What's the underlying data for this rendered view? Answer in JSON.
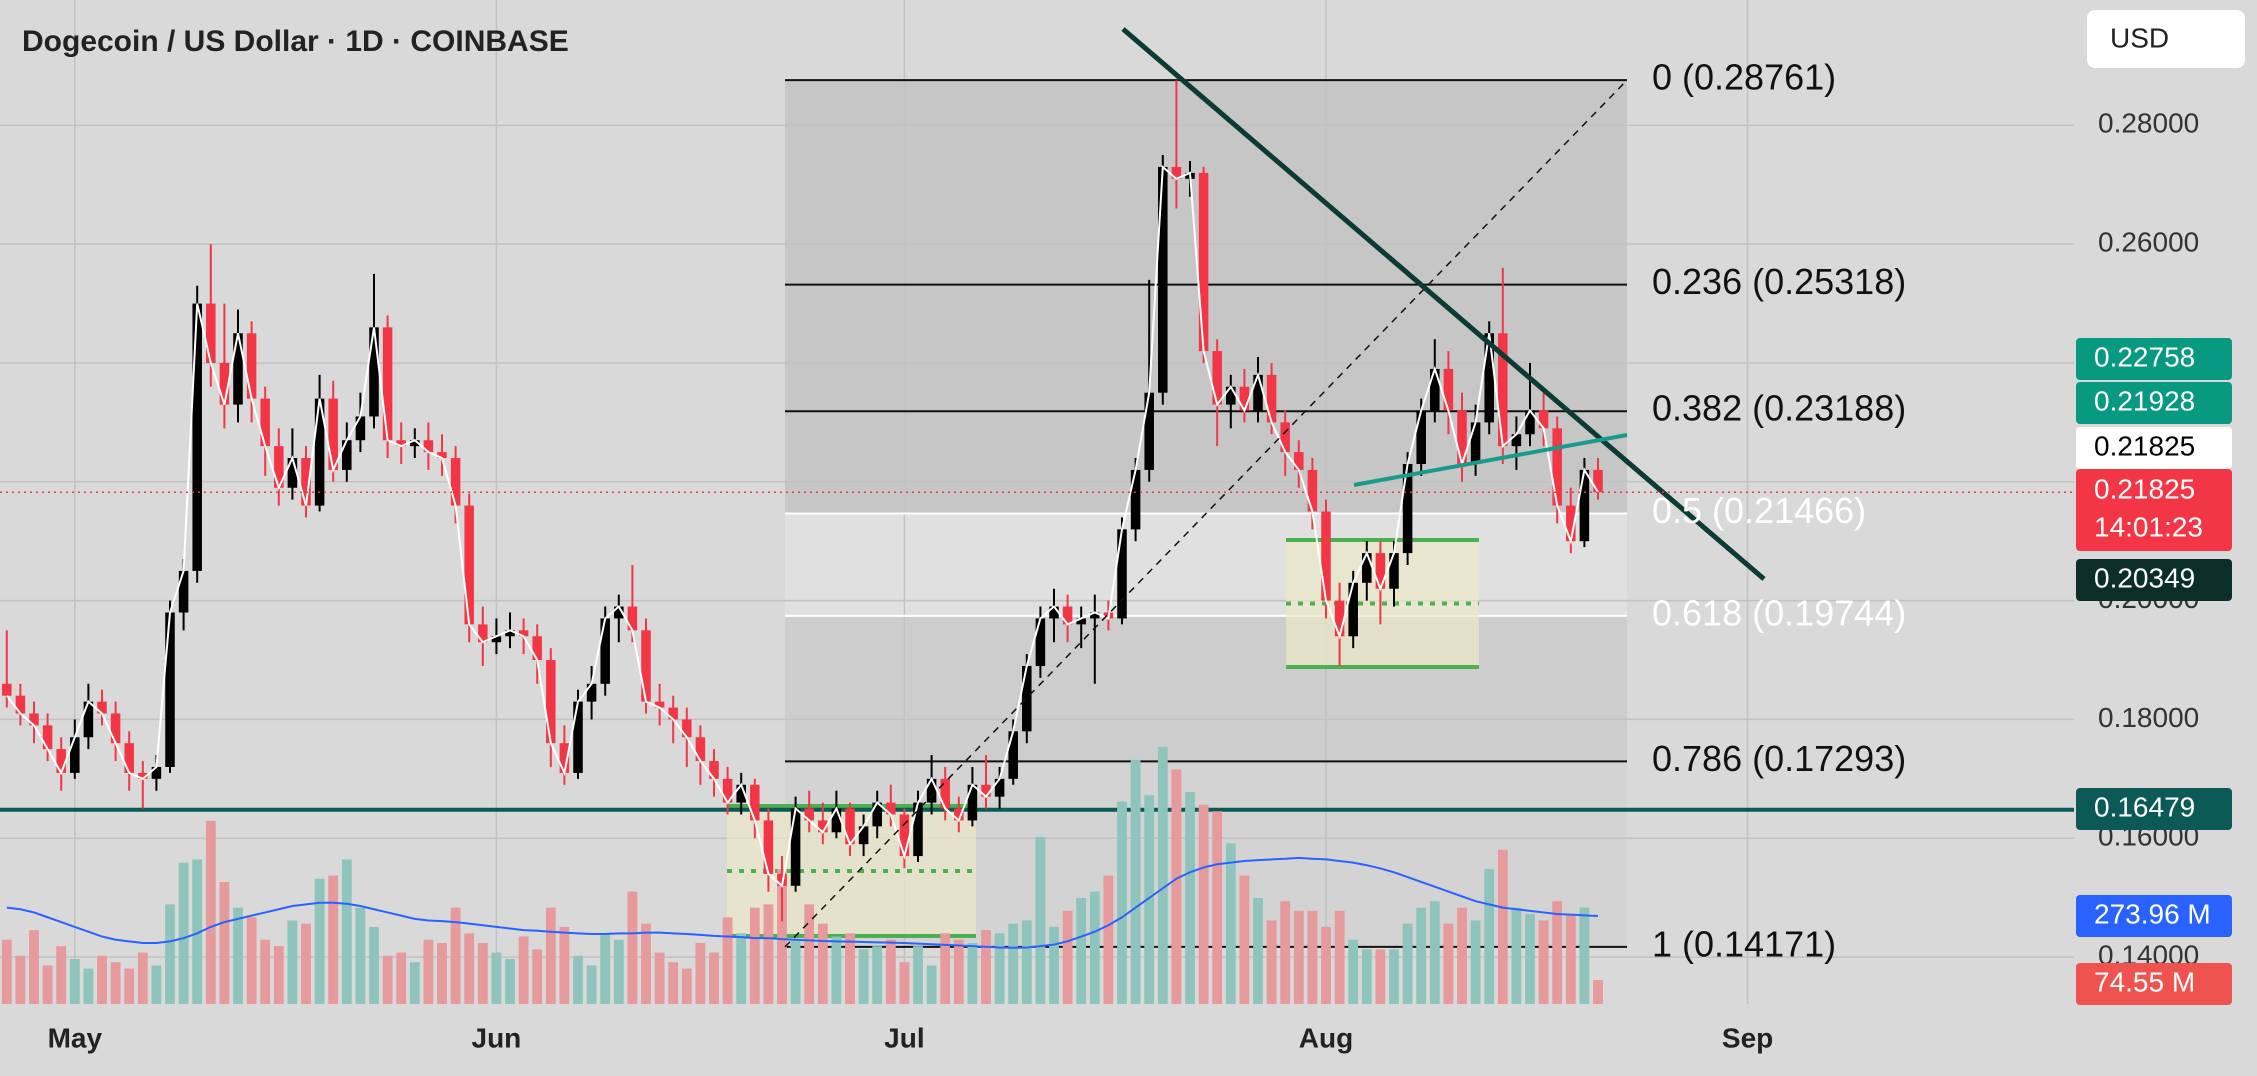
{
  "chart_data": {
    "type": "candlestick",
    "title": "Dogecoin / US Dollar · 1D · COINBASE",
    "currency": "USD",
    "up_color": "#000000",
    "down_color": "#f23645",
    "close_line_color": "#ffffff",
    "candles": [
      [
        0.186,
        0.195,
        0.182,
        0.184
      ],
      [
        0.184,
        0.186,
        0.179,
        0.181
      ],
      [
        0.181,
        0.183,
        0.176,
        0.179
      ],
      [
        0.179,
        0.181,
        0.173,
        0.175
      ],
      [
        0.175,
        0.177,
        0.168,
        0.171
      ],
      [
        0.171,
        0.18,
        0.17,
        0.177
      ],
      [
        0.177,
        0.186,
        0.175,
        0.183
      ],
      [
        0.183,
        0.185,
        0.179,
        0.181
      ],
      [
        0.181,
        0.183,
        0.173,
        0.176
      ],
      [
        0.176,
        0.178,
        0.168,
        0.171
      ],
      [
        0.171,
        0.173,
        0.165,
        0.17
      ],
      [
        0.17,
        0.174,
        0.168,
        0.172
      ],
      [
        0.172,
        0.2,
        0.171,
        0.198
      ],
      [
        0.198,
        0.207,
        0.195,
        0.205
      ],
      [
        0.205,
        0.253,
        0.203,
        0.25
      ],
      [
        0.25,
        0.26,
        0.236,
        0.24
      ],
      [
        0.24,
        0.25,
        0.229,
        0.233
      ],
      [
        0.233,
        0.249,
        0.23,
        0.245
      ],
      [
        0.245,
        0.247,
        0.23,
        0.234
      ],
      [
        0.234,
        0.236,
        0.221,
        0.226
      ],
      [
        0.226,
        0.229,
        0.216,
        0.219
      ],
      [
        0.219,
        0.229,
        0.217,
        0.224
      ],
      [
        0.224,
        0.226,
        0.214,
        0.216
      ],
      [
        0.216,
        0.238,
        0.215,
        0.234
      ],
      [
        0.234,
        0.237,
        0.22,
        0.222
      ],
      [
        0.222,
        0.23,
        0.22,
        0.227
      ],
      [
        0.227,
        0.235,
        0.225,
        0.231
      ],
      [
        0.231,
        0.255,
        0.229,
        0.246
      ],
      [
        0.246,
        0.248,
        0.224,
        0.227
      ],
      [
        0.227,
        0.23,
        0.223,
        0.226
      ],
      [
        0.226,
        0.229,
        0.224,
        0.227
      ],
      [
        0.227,
        0.23,
        0.222,
        0.225
      ],
      [
        0.225,
        0.228,
        0.221,
        0.224
      ],
      [
        0.224,
        0.226,
        0.213,
        0.216
      ],
      [
        0.216,
        0.218,
        0.193,
        0.196
      ],
      [
        0.196,
        0.199,
        0.189,
        0.193
      ],
      [
        0.193,
        0.197,
        0.191,
        0.194
      ],
      [
        0.194,
        0.198,
        0.192,
        0.195
      ],
      [
        0.195,
        0.197,
        0.191,
        0.194
      ],
      [
        0.194,
        0.196,
        0.186,
        0.19
      ],
      [
        0.19,
        0.192,
        0.172,
        0.176
      ],
      [
        0.176,
        0.179,
        0.169,
        0.171
      ],
      [
        0.171,
        0.185,
        0.17,
        0.183
      ],
      [
        0.183,
        0.189,
        0.18,
        0.186
      ],
      [
        0.186,
        0.199,
        0.184,
        0.197
      ],
      [
        0.197,
        0.201,
        0.193,
        0.199
      ],
      [
        0.199,
        0.206,
        0.193,
        0.195
      ],
      [
        0.195,
        0.197,
        0.181,
        0.183
      ],
      [
        0.183,
        0.186,
        0.179,
        0.182
      ],
      [
        0.182,
        0.184,
        0.176,
        0.18
      ],
      [
        0.18,
        0.182,
        0.172,
        0.177
      ],
      [
        0.177,
        0.179,
        0.169,
        0.173
      ],
      [
        0.173,
        0.175,
        0.167,
        0.17
      ],
      [
        0.17,
        0.172,
        0.164,
        0.166
      ],
      [
        0.166,
        0.171,
        0.164,
        0.169
      ],
      [
        0.169,
        0.17,
        0.16,
        0.163
      ],
      [
        0.163,
        0.165,
        0.151,
        0.154
      ],
      [
        0.154,
        0.157,
        0.146,
        0.152
      ],
      [
        0.152,
        0.167,
        0.151,
        0.165
      ],
      [
        0.165,
        0.168,
        0.161,
        0.163
      ],
      [
        0.163,
        0.166,
        0.159,
        0.161
      ],
      [
        0.161,
        0.168,
        0.16,
        0.165
      ],
      [
        0.165,
        0.166,
        0.157,
        0.159
      ],
      [
        0.159,
        0.164,
        0.157,
        0.162
      ],
      [
        0.162,
        0.168,
        0.16,
        0.166
      ],
      [
        0.166,
        0.169,
        0.162,
        0.164
      ],
      [
        0.164,
        0.165,
        0.155,
        0.157
      ],
      [
        0.157,
        0.168,
        0.156,
        0.166
      ],
      [
        0.166,
        0.174,
        0.164,
        0.17
      ],
      [
        0.17,
        0.172,
        0.163,
        0.165
      ],
      [
        0.165,
        0.167,
        0.161,
        0.163
      ],
      [
        0.163,
        0.172,
        0.162,
        0.169
      ],
      [
        0.169,
        0.174,
        0.165,
        0.167
      ],
      [
        0.167,
        0.172,
        0.165,
        0.17
      ],
      [
        0.17,
        0.18,
        0.169,
        0.178
      ],
      [
        0.178,
        0.191,
        0.176,
        0.189
      ],
      [
        0.189,
        0.199,
        0.187,
        0.197
      ],
      [
        0.197,
        0.202,
        0.193,
        0.199
      ],
      [
        0.199,
        0.201,
        0.193,
        0.196
      ],
      [
        0.196,
        0.199,
        0.192,
        0.197
      ],
      [
        0.197,
        0.201,
        0.186,
        0.198
      ],
      [
        0.198,
        0.2,
        0.195,
        0.197
      ],
      [
        0.197,
        0.214,
        0.196,
        0.212
      ],
      [
        0.212,
        0.224,
        0.21,
        0.222
      ],
      [
        0.222,
        0.254,
        0.22,
        0.235
      ],
      [
        0.235,
        0.275,
        0.233,
        0.273
      ],
      [
        0.273,
        0.2876,
        0.266,
        0.271
      ],
      [
        0.271,
        0.274,
        0.268,
        0.272
      ],
      [
        0.272,
        0.273,
        0.24,
        0.242
      ],
      [
        0.242,
        0.244,
        0.226,
        0.233
      ],
      [
        0.233,
        0.238,
        0.229,
        0.236
      ],
      [
        0.236,
        0.239,
        0.23,
        0.232
      ],
      [
        0.232,
        0.241,
        0.23,
        0.238
      ],
      [
        0.238,
        0.24,
        0.228,
        0.23
      ],
      [
        0.23,
        0.232,
        0.221,
        0.225
      ],
      [
        0.225,
        0.227,
        0.219,
        0.222
      ],
      [
        0.222,
        0.224,
        0.212,
        0.215
      ],
      [
        0.215,
        0.217,
        0.197,
        0.2
      ],
      [
        0.2,
        0.203,
        0.189,
        0.194
      ],
      [
        0.194,
        0.205,
        0.192,
        0.203
      ],
      [
        0.203,
        0.21,
        0.2,
        0.208
      ],
      [
        0.208,
        0.21,
        0.196,
        0.202
      ],
      [
        0.202,
        0.21,
        0.199,
        0.208
      ],
      [
        0.208,
        0.225,
        0.206,
        0.223
      ],
      [
        0.223,
        0.234,
        0.221,
        0.232
      ],
      [
        0.232,
        0.244,
        0.23,
        0.239
      ],
      [
        0.239,
        0.242,
        0.228,
        0.232
      ],
      [
        0.232,
        0.235,
        0.22,
        0.223
      ],
      [
        0.223,
        0.233,
        0.221,
        0.23
      ],
      [
        0.23,
        0.247,
        0.228,
        0.245
      ],
      [
        0.245,
        0.256,
        0.223,
        0.226
      ],
      [
        0.226,
        0.231,
        0.222,
        0.228
      ],
      [
        0.228,
        0.24,
        0.226,
        0.232
      ],
      [
        0.232,
        0.235,
        0.226,
        0.229
      ],
      [
        0.229,
        0.231,
        0.213,
        0.216
      ],
      [
        0.216,
        0.219,
        0.208,
        0.21
      ],
      [
        0.21,
        0.224,
        0.209,
        0.222
      ],
      [
        0.222,
        0.224,
        0.217,
        0.21825
      ]
    ],
    "volume": {
      "up_color": "#8ec4bc",
      "down_color": "#e69a9b",
      "ylim": [
        0,
        3125
      ],
      "values": [
        200,
        150,
        230,
        120,
        180,
        140,
        110,
        150,
        130,
        110,
        160,
        120,
        310,
        440,
        450,
        570,
        380,
        300,
        270,
        200,
        180,
        260,
        250,
        390,
        400,
        450,
        300,
        240,
        150,
        160,
        130,
        200,
        190,
        300,
        220,
        190,
        160,
        140,
        210,
        170,
        300,
        240,
        150,
        120,
        220,
        200,
        350,
        250,
        160,
        130,
        110,
        190,
        160,
        270,
        220,
        300,
        310,
        420,
        200,
        310,
        250,
        210,
        220,
        170,
        180,
        200,
        130,
        180,
        120,
        220,
        200,
        190,
        230,
        220,
        250,
        260,
        520,
        240,
        290,
        330,
        350,
        400,
        630,
        760,
        650,
        800,
        730,
        660,
        620,
        600,
        500,
        400,
        330,
        260,
        320,
        290,
        290,
        240,
        290,
        200,
        170,
        170,
        170,
        250,
        300,
        320,
        250,
        300,
        260,
        420,
        480,
        300,
        280,
        260,
        320,
        280,
        300,
        74.55
      ],
      "ma": {
        "color": "#2962ff",
        "values": [
          300,
          295,
          285,
          270,
          255,
          240,
          225,
          210,
          200,
          195,
          190,
          190,
          195,
          205,
          220,
          240,
          255,
          265,
          275,
          285,
          295,
          305,
          310,
          315,
          315,
          312,
          305,
          295,
          285,
          275,
          265,
          260,
          258,
          255,
          250,
          245,
          240,
          235,
          230,
          228,
          225,
          222,
          220,
          218,
          218,
          220,
          220,
          222,
          222,
          220,
          218,
          215,
          212,
          210,
          208,
          205,
          205,
          202,
          200,
          198,
          196,
          195,
          194,
          193,
          192,
          191,
          190,
          188,
          186,
          184,
          182,
          180,
          178,
          176,
          175,
          176,
          180,
          185,
          195,
          210,
          225,
          245,
          270,
          300,
          330,
          360,
          390,
          410,
          425,
          435,
          440,
          445,
          448,
          450,
          452,
          455,
          452,
          450,
          445,
          440,
          432,
          422,
          410,
          395,
          380,
          365,
          350,
          335,
          320,
          310,
          300,
          295,
          290,
          285,
          280,
          278,
          276,
          273.96
        ]
      }
    },
    "xlim": [
      -0.5,
      152
    ],
    "xticks": [
      {
        "value": 5,
        "label": "May"
      },
      {
        "value": 36,
        "label": "Jun"
      },
      {
        "value": 66,
        "label": "Jul"
      },
      {
        "value": 97,
        "label": "Aug"
      },
      {
        "value": 128,
        "label": "Sep"
      }
    ],
    "ylim": [
      0.1321,
      0.3011
    ],
    "yticks": [
      {
        "value": 0.14,
        "label": "0.14000"
      },
      {
        "value": 0.16,
        "label": "0.16000"
      },
      {
        "value": 0.18,
        "label": "0.18000"
      },
      {
        "value": 0.2,
        "label": "0.20000"
      },
      {
        "value": 0.22,
        "label": "0.22000"
      },
      {
        "value": 0.24,
        "label": "0.24000"
      },
      {
        "value": 0.26,
        "label": "0.26000"
      },
      {
        "value": 0.28,
        "label": "0.28000"
      }
    ],
    "grid": true,
    "fib_levels": [
      {
        "value": 0.28761,
        "label": "0 (0.28761)",
        "color": "#111111",
        "band_color": "#c6c6c6"
      },
      {
        "value": 0.25318,
        "label": "0.236 (0.25318)",
        "color": "#111111",
        "band_color": "#c6c6c6"
      },
      {
        "value": 0.23188,
        "label": "0.382 (0.23188)",
        "color": "#111111",
        "band_color": "#c6c6c6"
      },
      {
        "value": 0.21466,
        "label": "0.5 (0.21466)",
        "color": "#ffffff",
        "band_color": "#e0e0e0"
      },
      {
        "value": 0.19744,
        "label": "0.618 (0.19744)",
        "color": "#ffffff",
        "band_color": "#cdcdcd"
      },
      {
        "value": 0.17293,
        "label": "0.786 (0.17293)",
        "color": "#111111",
        "band_color": "#d3d3d3"
      },
      {
        "value": 0.14171,
        "label": "1 (0.14171)",
        "color": "#111111"
      }
    ],
    "support_line": {
      "value": 0.16479,
      "color": "#0b5a55"
    },
    "last_price_line": {
      "value": 0.21825,
      "color": "#f23645"
    },
    "price_tags": [
      {
        "value": 0.22758,
        "color": "#089981",
        "text_color": "#ffffff"
      },
      {
        "value": 0.21928,
        "color": "#089981",
        "text_color": "#ffffff"
      },
      {
        "value": 0.21825,
        "color": "#ffffff",
        "text_color": "#000000"
      },
      {
        "value": 0.21825,
        "countdown": "14:01:23",
        "color": "#f23645",
        "text_color": "#ffffff"
      },
      {
        "value": 0.20349,
        "color": "#0b2e29",
        "text_color": "#ffffff"
      },
      {
        "value": 0.16479,
        "color": "#0b5a55",
        "text_color": "#ffffff"
      },
      {
        "value": 273.96,
        "label": "273.96 M",
        "color": "#2962ff",
        "text_color": "#ffffff"
      },
      {
        "value": 74.55,
        "label": "74.55 M",
        "color": "#ef5350",
        "text_color": "#ffffff"
      }
    ]
  }
}
